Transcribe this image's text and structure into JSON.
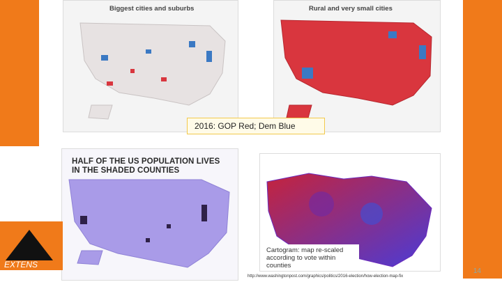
{
  "maps": {
    "cities": {
      "title": "Biggest cities and suburbs"
    },
    "rural": {
      "title": "Rural and very small cities"
    },
    "caption": "2016: GOP Red; Dem Blue",
    "population": {
      "title_line1": "HALF OF THE US POPULATION LIVES",
      "title_line2": "IN THE SHADED COUNTIES"
    },
    "cartogram": {
      "note_line1": "Cartogram: map re-scaled",
      "note_line2": "according to vote within",
      "note_line3": "counties"
    }
  },
  "footer": {
    "url": "http://www.washingtonpost.com/graphics/politics/2016-election/how-election-map-fix",
    "page_number": "14"
  },
  "colors": {
    "orange": "#f07a1a",
    "gop_red": "#d9363e",
    "dem_blue": "#3b79c3",
    "purple": "#a99be8"
  }
}
